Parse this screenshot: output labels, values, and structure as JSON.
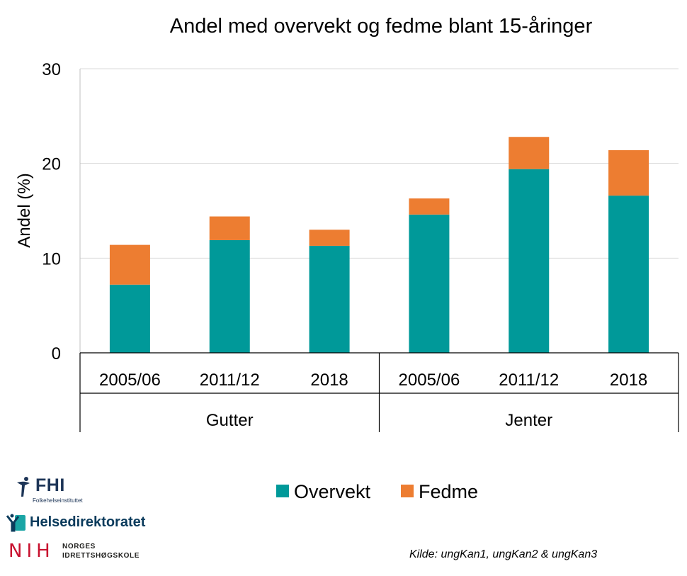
{
  "chart_data": {
    "type": "bar",
    "stacked": true,
    "title": "Andel med overvekt og fedme blant 15-åringer",
    "ylabel": "Andel (%)",
    "ylim": [
      0,
      30
    ],
    "yticks": [
      0,
      10,
      20,
      30
    ],
    "grid": true,
    "legend_position": "bottom",
    "groups": [
      {
        "label": "Gutter",
        "categories": [
          "2005/06",
          "2011/12",
          "2018"
        ]
      },
      {
        "label": "Jenter",
        "categories": [
          "2005/06",
          "2011/12",
          "2018"
        ]
      }
    ],
    "series": [
      {
        "name": "Overvekt",
        "color": "#009999",
        "values": [
          7.2,
          11.9,
          11.3,
          14.6,
          19.4,
          16.6
        ]
      },
      {
        "name": "Fedme",
        "color": "#ED7D31",
        "values": [
          4.2,
          2.5,
          1.7,
          1.7,
          3.4,
          4.8
        ]
      }
    ]
  },
  "source": "Kilde: ungKan1, ungKan2 & ungKan3",
  "logos": {
    "fhi": {
      "name": "FHI",
      "sub": "Folkehelseinstituttet"
    },
    "hdir": {
      "name": "Helsedirektoratet"
    },
    "nih": {
      "name": "NIH",
      "sub": "NORGES\nIDRETTSHØGSKOLE"
    }
  }
}
